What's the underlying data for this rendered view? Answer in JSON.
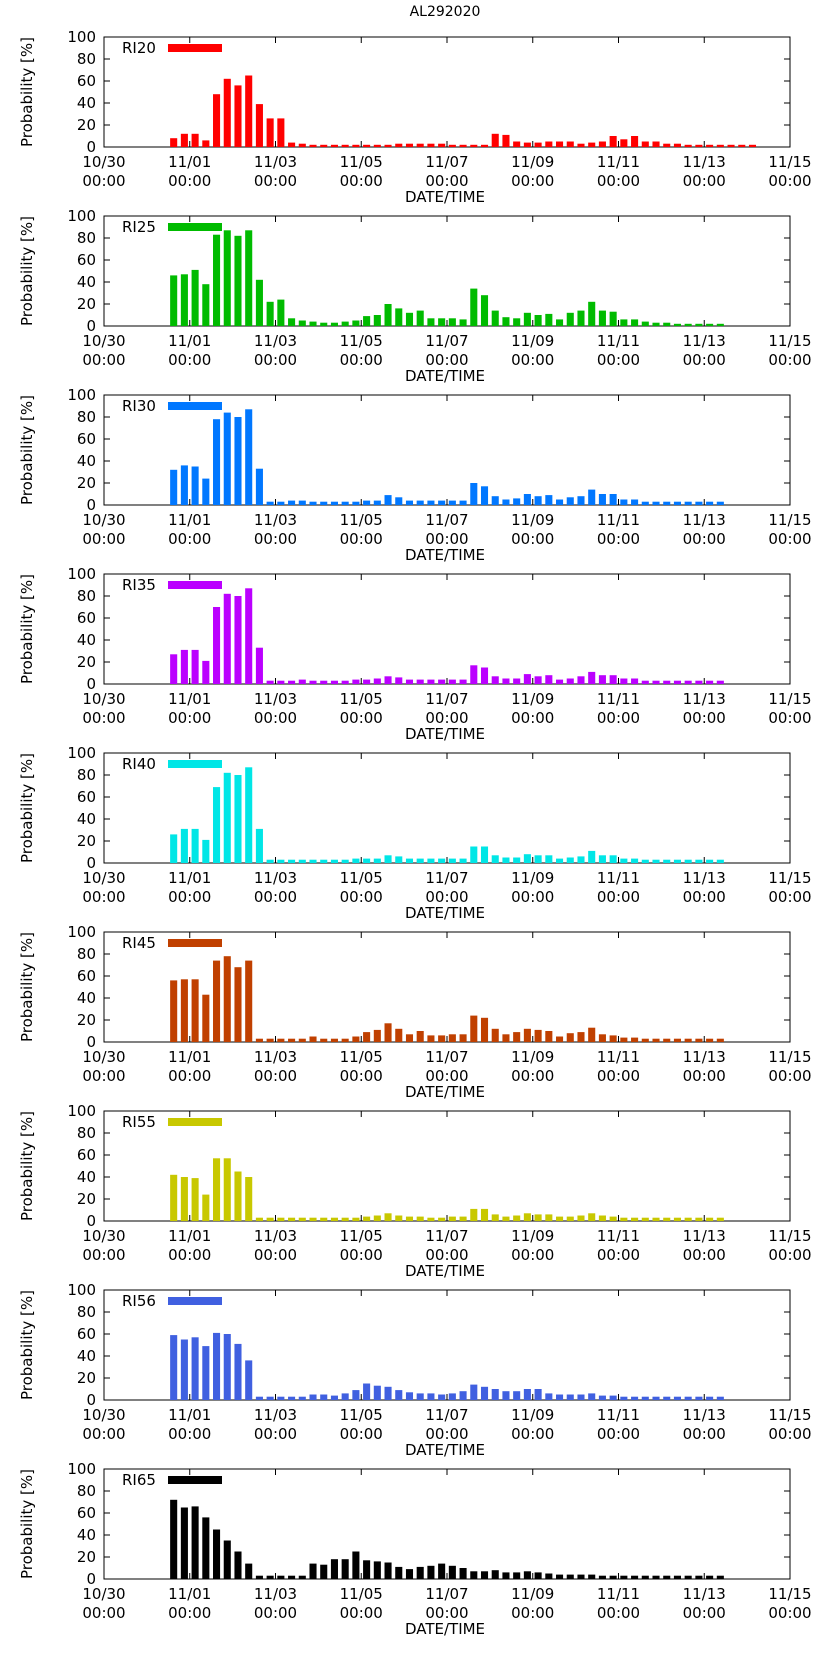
{
  "title": "AL292020",
  "x_tick_labels": [
    {
      "date": "10/30",
      "time": "00:00"
    },
    {
      "date": "11/01",
      "time": "00:00"
    },
    {
      "date": "11/03",
      "time": "00:00"
    },
    {
      "date": "11/05",
      "time": "00:00"
    },
    {
      "date": "11/07",
      "time": "00:00"
    },
    {
      "date": "11/09",
      "time": "00:00"
    },
    {
      "date": "11/11",
      "time": "00:00"
    },
    {
      "date": "11/13",
      "time": "00:00"
    },
    {
      "date": "11/15",
      "time": "00:00"
    }
  ],
  "chart_data": [
    {
      "type": "bar",
      "series_name": "RI20",
      "color": "#ff0000",
      "xlabel": "DATE/TIME",
      "ylabel": "Probability [%]",
      "ylim": [
        0,
        100
      ],
      "yticks": [
        0,
        20,
        40,
        60,
        80,
        100
      ],
      "start_index": 6,
      "values": [
        8,
        12,
        12,
        6,
        48,
        62,
        56,
        65,
        39,
        26,
        26,
        4,
        3,
        2,
        2,
        2,
        2,
        2,
        2,
        2,
        2,
        3,
        3,
        3,
        3,
        3,
        2,
        2,
        2,
        2,
        12,
        11,
        5,
        4,
        4,
        5,
        5,
        5,
        3,
        4,
        5,
        10,
        7,
        10,
        5,
        5,
        3,
        3,
        2,
        2,
        2,
        2,
        2,
        2,
        2
      ]
    },
    {
      "type": "bar",
      "series_name": "RI25",
      "color": "#00bb00",
      "xlabel": "DATE/TIME",
      "ylabel": "Probability [%]",
      "ylim": [
        0,
        100
      ],
      "yticks": [
        0,
        20,
        40,
        60,
        80,
        100
      ],
      "start_index": 6,
      "values": [
        46,
        47,
        51,
        38,
        83,
        87,
        82,
        87,
        42,
        22,
        24,
        7,
        5,
        4,
        3,
        3,
        4,
        5,
        9,
        10,
        20,
        16,
        12,
        14,
        7,
        7,
        7,
        6,
        34,
        28,
        14,
        8,
        7,
        12,
        10,
        11,
        6,
        12,
        14,
        22,
        14,
        13,
        6,
        6,
        4,
        3,
        3,
        2,
        2,
        2,
        2,
        2
      ]
    },
    {
      "type": "bar",
      "series_name": "RI30",
      "color": "#0077ff",
      "xlabel": "DATE/TIME",
      "ylabel": "Probability [%]",
      "ylim": [
        0,
        100
      ],
      "yticks": [
        0,
        20,
        40,
        60,
        80,
        100
      ],
      "start_index": 6,
      "values": [
        32,
        36,
        35,
        24,
        78,
        84,
        80,
        87,
        33,
        3,
        3,
        4,
        4,
        3,
        3,
        3,
        3,
        3,
        4,
        4,
        9,
        7,
        4,
        4,
        4,
        4,
        4,
        4,
        20,
        17,
        8,
        5,
        6,
        10,
        8,
        9,
        5,
        7,
        8,
        14,
        10,
        10,
        5,
        5,
        3,
        3,
        3,
        3,
        3,
        3,
        3,
        3
      ]
    },
    {
      "type": "bar",
      "series_name": "RI35",
      "color": "#bb00ff",
      "xlabel": "DATE/TIME",
      "ylabel": "Probability [%]",
      "ylim": [
        0,
        100
      ],
      "yticks": [
        0,
        20,
        40,
        60,
        80,
        100
      ],
      "start_index": 6,
      "values": [
        27,
        31,
        31,
        21,
        70,
        82,
        80,
        87,
        33,
        3,
        3,
        3,
        4,
        3,
        3,
        3,
        3,
        4,
        4,
        5,
        7,
        6,
        4,
        4,
        4,
        4,
        4,
        4,
        17,
        15,
        7,
        5,
        5,
        9,
        7,
        8,
        4,
        5,
        7,
        11,
        8,
        8,
        5,
        5,
        3,
        3,
        3,
        3,
        3,
        3,
        3,
        3
      ]
    },
    {
      "type": "bar",
      "series_name": "RI40",
      "color": "#00e6e6",
      "xlabel": "DATE/TIME",
      "ylabel": "Probability [%]",
      "ylim": [
        0,
        100
      ],
      "yticks": [
        0,
        20,
        40,
        60,
        80,
        100
      ],
      "start_index": 6,
      "values": [
        26,
        31,
        31,
        21,
        69,
        82,
        80,
        87,
        31,
        3,
        3,
        3,
        3,
        3,
        3,
        3,
        3,
        4,
        4,
        4,
        7,
        6,
        4,
        4,
        4,
        4,
        4,
        4,
        15,
        15,
        7,
        5,
        5,
        8,
        7,
        7,
        4,
        5,
        6,
        11,
        7,
        7,
        4,
        4,
        3,
        3,
        3,
        3,
        3,
        3,
        3,
        3
      ]
    },
    {
      "type": "bar",
      "series_name": "RI45",
      "color": "#c04000",
      "xlabel": "DATE/TIME",
      "ylabel": "Probability [%]",
      "ylim": [
        0,
        100
      ],
      "yticks": [
        0,
        20,
        40,
        60,
        80,
        100
      ],
      "start_index": 6,
      "values": [
        56,
        57,
        57,
        43,
        74,
        78,
        68,
        74,
        3,
        3,
        3,
        3,
        3,
        5,
        3,
        3,
        3,
        5,
        9,
        11,
        17,
        12,
        7,
        10,
        6,
        6,
        7,
        7,
        24,
        22,
        12,
        7,
        9,
        12,
        11,
        10,
        5,
        8,
        9,
        13,
        7,
        6,
        4,
        4,
        3,
        3,
        3,
        3,
        3,
        3,
        3,
        3
      ]
    },
    {
      "type": "bar",
      "series_name": "RI55",
      "color": "#c8c800",
      "xlabel": "DATE/TIME",
      "ylabel": "Probability [%]",
      "ylim": [
        0,
        100
      ],
      "yticks": [
        0,
        20,
        40,
        60,
        80,
        100
      ],
      "start_index": 6,
      "values": [
        42,
        40,
        39,
        24,
        57,
        57,
        45,
        40,
        3,
        3,
        3,
        3,
        3,
        3,
        3,
        3,
        3,
        3,
        4,
        5,
        7,
        5,
        4,
        4,
        3,
        3,
        4,
        4,
        11,
        11,
        6,
        4,
        5,
        7,
        6,
        6,
        4,
        4,
        5,
        7,
        5,
        4,
        3,
        3,
        3,
        3,
        3,
        3,
        3,
        3,
        3,
        3
      ]
    },
    {
      "type": "bar",
      "series_name": "RI56",
      "color": "#4060e0",
      "xlabel": "DATE/TIME",
      "ylabel": "Probability [%]",
      "ylim": [
        0,
        100
      ],
      "yticks": [
        0,
        20,
        40,
        60,
        80,
        100
      ],
      "start_index": 6,
      "values": [
        59,
        55,
        57,
        49,
        61,
        60,
        51,
        36,
        3,
        3,
        3,
        3,
        3,
        5,
        5,
        4,
        6,
        9,
        15,
        13,
        12,
        9,
        7,
        6,
        6,
        5,
        6,
        8,
        14,
        12,
        10,
        8,
        8,
        10,
        10,
        6,
        5,
        5,
        5,
        6,
        4,
        4,
        3,
        3,
        3,
        3,
        3,
        3,
        3,
        3,
        3,
        3
      ]
    },
    {
      "type": "bar",
      "series_name": "RI65",
      "color": "#000000",
      "xlabel": "DATE/TIME",
      "ylabel": "Probability [%]",
      "ylim": [
        0,
        100
      ],
      "yticks": [
        0,
        20,
        40,
        60,
        80,
        100
      ],
      "start_index": 6,
      "values": [
        72,
        65,
        66,
        56,
        45,
        35,
        25,
        14,
        3,
        3,
        3,
        3,
        3,
        14,
        13,
        18,
        18,
        25,
        17,
        16,
        15,
        11,
        9,
        11,
        12,
        14,
        12,
        10,
        7,
        7,
        8,
        6,
        6,
        7,
        6,
        5,
        4,
        4,
        4,
        4,
        3,
        3,
        3,
        3,
        3,
        3,
        3,
        3,
        3,
        3,
        3,
        3
      ]
    }
  ]
}
